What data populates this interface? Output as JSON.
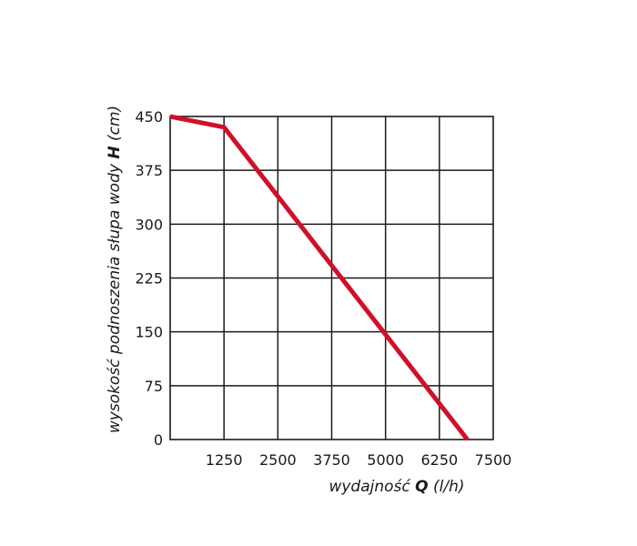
{
  "chart_data": {
    "type": "line",
    "xlabel_parts": [
      "wydajność ",
      "Q",
      " (l/h)"
    ],
    "ylabel_parts": [
      "wysokość podnoszenia słupa wody ",
      "H",
      " (cm)"
    ],
    "x_ticks": [
      "1250",
      "2500",
      "3750",
      "5000",
      "6250",
      "7500"
    ],
    "y_ticks": [
      "0",
      "75",
      "150",
      "225",
      "300",
      "375",
      "450"
    ],
    "xlim": [
      0,
      7500
    ],
    "ylim": [
      0,
      450
    ],
    "grid": true,
    "series": [
      {
        "color": "#d0102a",
        "x": [
          0,
          1250,
          6900
        ],
        "y": [
          450,
          435,
          0
        ]
      }
    ]
  }
}
